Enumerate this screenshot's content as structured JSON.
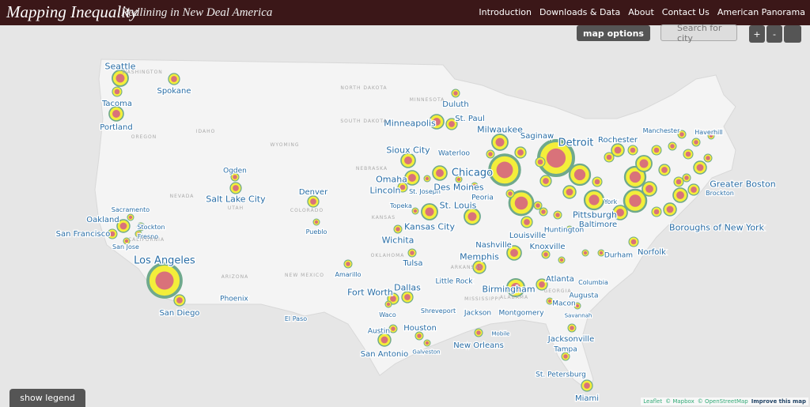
{
  "header": {
    "title": "Mapping Inequality",
    "subtitle": "Redlining in New Deal America",
    "nav": [
      "Introduction",
      "Downloads & Data",
      "About",
      "Contact Us",
      "American Panorama"
    ]
  },
  "controls": {
    "map_options": "map options",
    "search_placeholder": "Search for city",
    "zoom_in": "+",
    "zoom_out": "-",
    "show_legend": "show legend"
  },
  "map": {
    "cities": [
      "Seattle",
      "Spokane",
      "Tacoma",
      "Portland",
      "Ogden",
      "Salt Lake City",
      "Denver",
      "Pueblo",
      "Sacramento",
      "Oakland",
      "Stockton",
      "San Francisco",
      "Fresno",
      "San Jose",
      "Los Angeles",
      "San Diego",
      "Phoenix",
      "El Paso",
      "Amarillo",
      "Duluth",
      "St. Paul",
      "Minneapolis",
      "Sioux City",
      "Waterloo",
      "Omaha",
      "Lincoln",
      "St. Joseph",
      "Des Moines",
      "Topeka",
      "Kansas City",
      "St. Louis",
      "Wichita",
      "Tulsa",
      "Fort Worth",
      "Dallas",
      "Waco",
      "Austin",
      "Houston",
      "Galveston",
      "San Antonio",
      "Shreveport",
      "Little Rock",
      "Memphis",
      "Jackson",
      "New Orleans",
      "Mobile",
      "Birmingham",
      "Montgomery",
      "Atlanta",
      "Macon",
      "Augusta",
      "Columbia",
      "Savannah",
      "Jacksonville",
      "Tampa",
      "St. Petersburg",
      "Miami",
      "Nashville",
      "Knoxville",
      "Louisville",
      "Huntington",
      "Durham",
      "Norfolk",
      "Pittsburgh",
      "Baltimore",
      "York",
      "Rochester",
      "Milwaukee",
      "Saginaw",
      "Detroit",
      "Chicago",
      "Peoria",
      "Greater Boston",
      "Brockton",
      "Manchester",
      "Haverhill",
      "Boroughs of New York"
    ],
    "states": [
      "WASHINGTON",
      "OREGON",
      "IDAHO",
      "NEVADA",
      "UTAH",
      "COLORADO",
      "KANSAS",
      "NEBRASKA",
      "WYOMING",
      "NORTH DAKOTA",
      "SOUTH DAKOTA",
      "MINNESOTA",
      "ARIZONA",
      "NEW MEXICO",
      "OKLAHOMA",
      "ARKANSAS",
      "ALABAMA",
      "CALIFORNIA",
      "MISSISSIPPI",
      "GEORGIA"
    ]
  },
  "attribution": {
    "leaflet": "Leaflet",
    "mapbox": "© Mapbox",
    "osm": "© OpenStreetMap",
    "improve": "Improve this map"
  }
}
